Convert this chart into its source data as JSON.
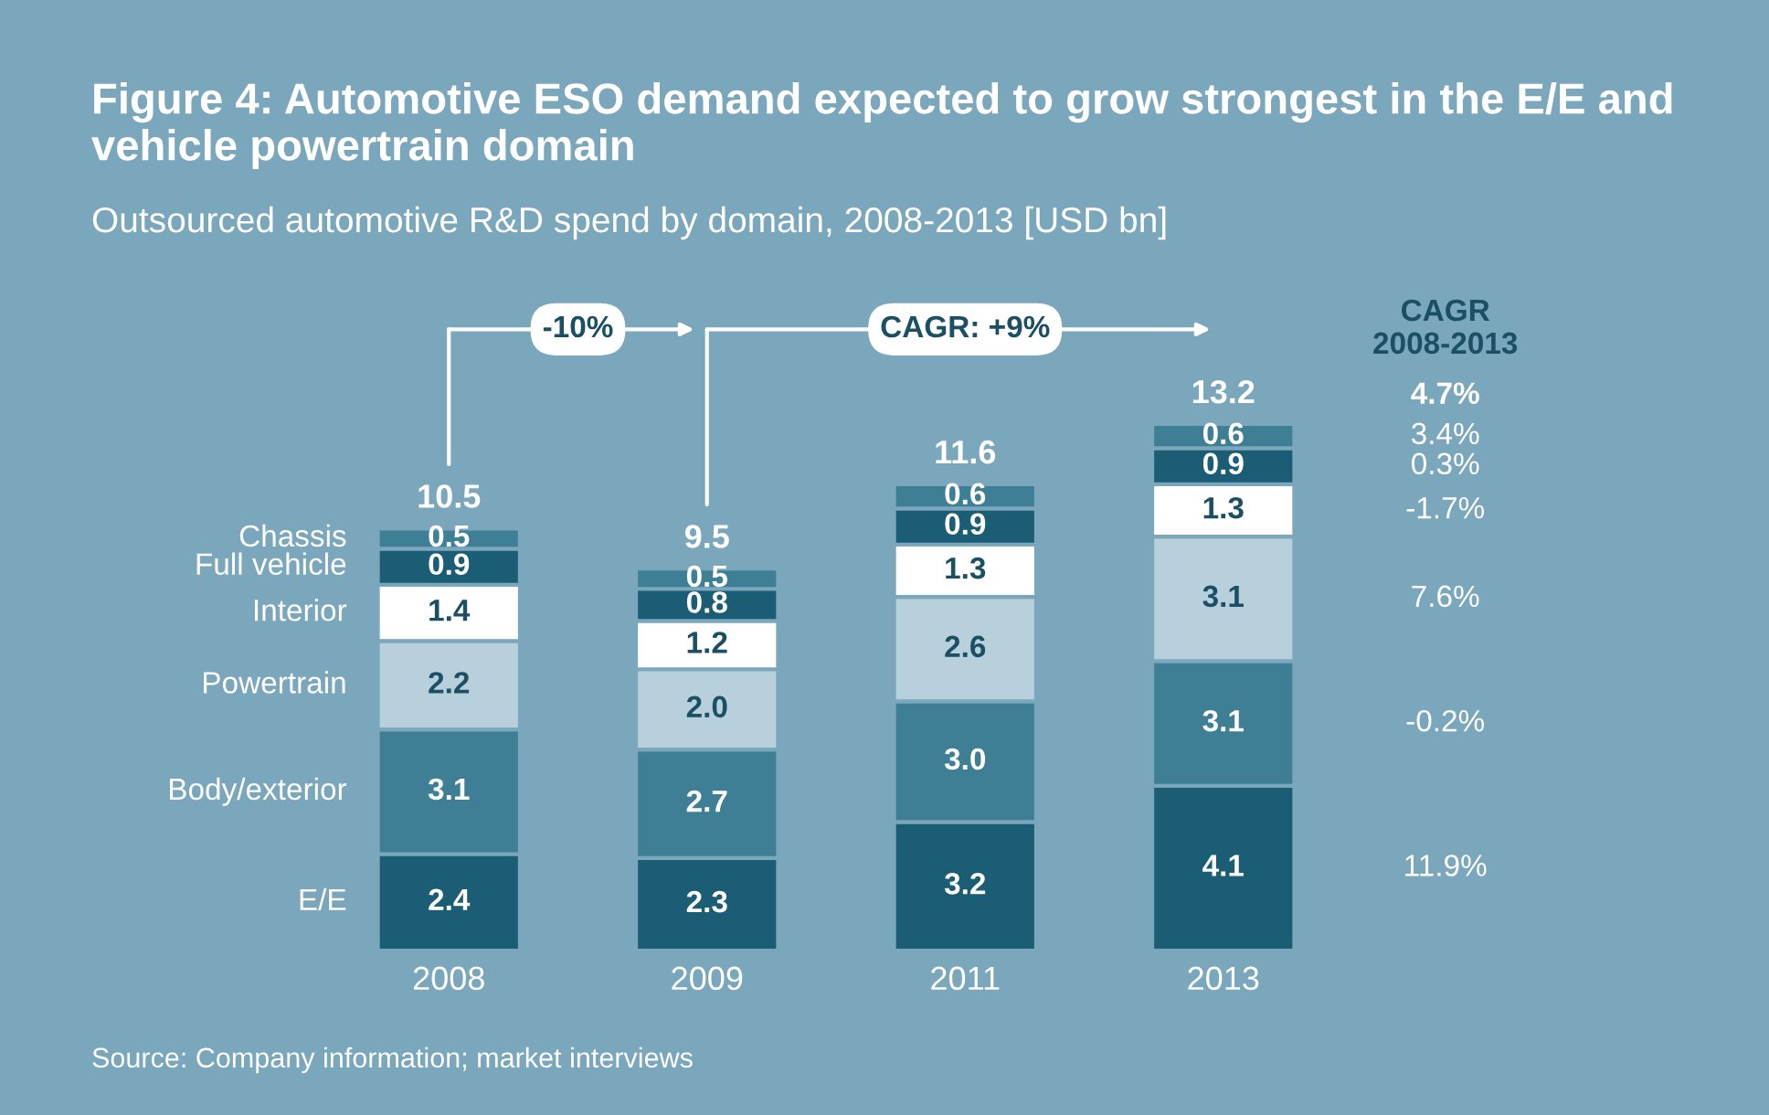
{
  "chart_data": {
    "type": "bar",
    "title": "Figure 4: Automotive ESO demand expected to grow strongest in the E/E and vehicle powertrain domain",
    "subtitle": "Outsourced automotive R&D spend by domain, 2008-2013 [USD bn]",
    "categories": [
      "2008",
      "2009",
      "2011",
      "2013"
    ],
    "stacked": true,
    "series": [
      {
        "name": "E/E",
        "color": "#1b5d75",
        "values": [
          2.4,
          2.3,
          3.2,
          4.1
        ],
        "value_labels": [
          "2.4",
          "2.3",
          "3.2",
          "4.1"
        ]
      },
      {
        "name": "Body/exterior",
        "color": "#3f7f96",
        "values": [
          3.1,
          2.7,
          3.0,
          3.1
        ],
        "value_labels": [
          "3.1",
          "2.7",
          "3.0",
          "3.1"
        ]
      },
      {
        "name": "Powertrain",
        "color": "#b8d0db",
        "values": [
          2.2,
          2.0,
          2.6,
          3.1
        ],
        "value_labels": [
          "2.2",
          "2.0",
          "2.6",
          "3.1"
        ]
      },
      {
        "name": "Interior",
        "color": "#ffffff",
        "values": [
          1.4,
          1.2,
          1.3,
          1.3
        ],
        "value_labels": [
          "1.4",
          "1.2",
          "1.3",
          "1.3"
        ]
      },
      {
        "name": "Full vehicle",
        "color": "#1b5d75",
        "values": [
          0.9,
          0.8,
          0.9,
          0.9
        ],
        "value_labels": [
          "0.9",
          "0.8",
          "0.9",
          "0.9"
        ]
      },
      {
        "name": "Chassis",
        "color": "#3f7f96",
        "values": [
          0.5,
          0.5,
          0.6,
          0.6
        ],
        "value_labels": [
          "0.5",
          "0.5",
          "0.6",
          "0.6"
        ]
      }
    ],
    "totals": [
      "10.5",
      "9.5",
      "11.6",
      "13.2"
    ],
    "annotations": [
      "-10%",
      "CAGR: +9%",
      "CAGR\n2008-2013",
      "4.7%",
      "11.9%",
      "-0.2%",
      "7.6%",
      "-1.7%",
      "0.3%",
      "3.4%",
      "Source: Company information; market interviews"
    ]
  }
}
